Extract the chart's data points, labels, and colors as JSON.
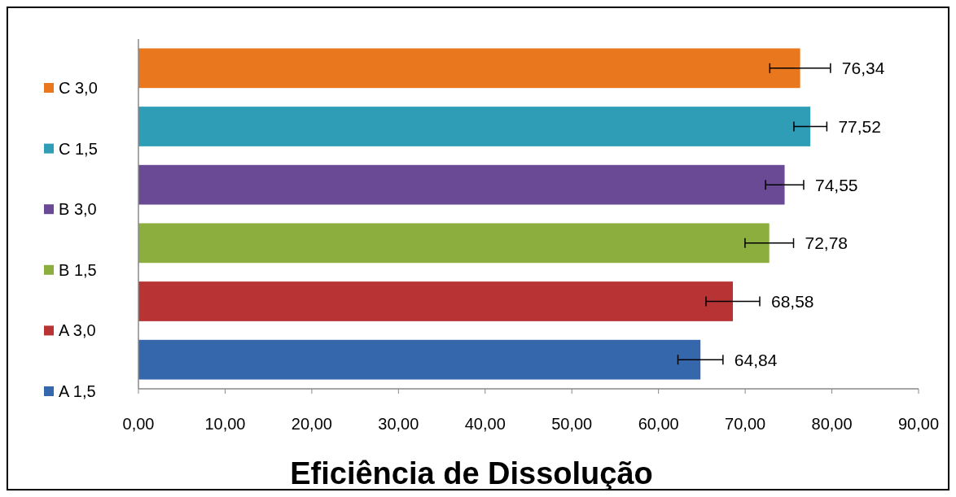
{
  "chart_data": {
    "type": "bar",
    "orientation": "horizontal",
    "title": "Eficiência de Dissolução",
    "categories": [
      null
    ],
    "series": [
      {
        "name": "A 1,5",
        "color": "#3567ad",
        "values": [
          64.84
        ],
        "errors": [
          2.6
        ]
      },
      {
        "name": "A 3,0",
        "color": "#b83333",
        "values": [
          68.58
        ],
        "errors": [
          3.1
        ]
      },
      {
        "name": "B 1,5",
        "color": "#8bae3e",
        "values": [
          72.78
        ],
        "errors": [
          2.8
        ]
      },
      {
        "name": "B 3,0",
        "color": "#6a4a94",
        "values": [
          74.55
        ],
        "errors": [
          2.2
        ]
      },
      {
        "name": "C 1,5",
        "color": "#2e9db5",
        "values": [
          77.52
        ],
        "errors": [
          1.9
        ]
      },
      {
        "name": "C 3,0",
        "color": "#e8771e",
        "values": [
          76.34
        ],
        "errors": [
          3.5
        ]
      }
    ],
    "value_labels": [
      "64,84",
      "68,58",
      "72,78",
      "74,55",
      "77,52",
      "76,34"
    ],
    "xlim": [
      0,
      90
    ],
    "xticks": [
      {
        "value": 0,
        "label": "0,00"
      },
      {
        "value": 10,
        "label": "10,00"
      },
      {
        "value": 20,
        "label": "20,00"
      },
      {
        "value": 30,
        "label": "30,00"
      },
      {
        "value": 40,
        "label": "40,00"
      },
      {
        "value": 50,
        "label": "50,00"
      },
      {
        "value": 60,
        "label": "60,00"
      },
      {
        "value": 70,
        "label": "70,00"
      },
      {
        "value": 80,
        "label": "80,00"
      },
      {
        "value": 90,
        "label": "90,00"
      }
    ],
    "grid": false,
    "legend": "left"
  }
}
